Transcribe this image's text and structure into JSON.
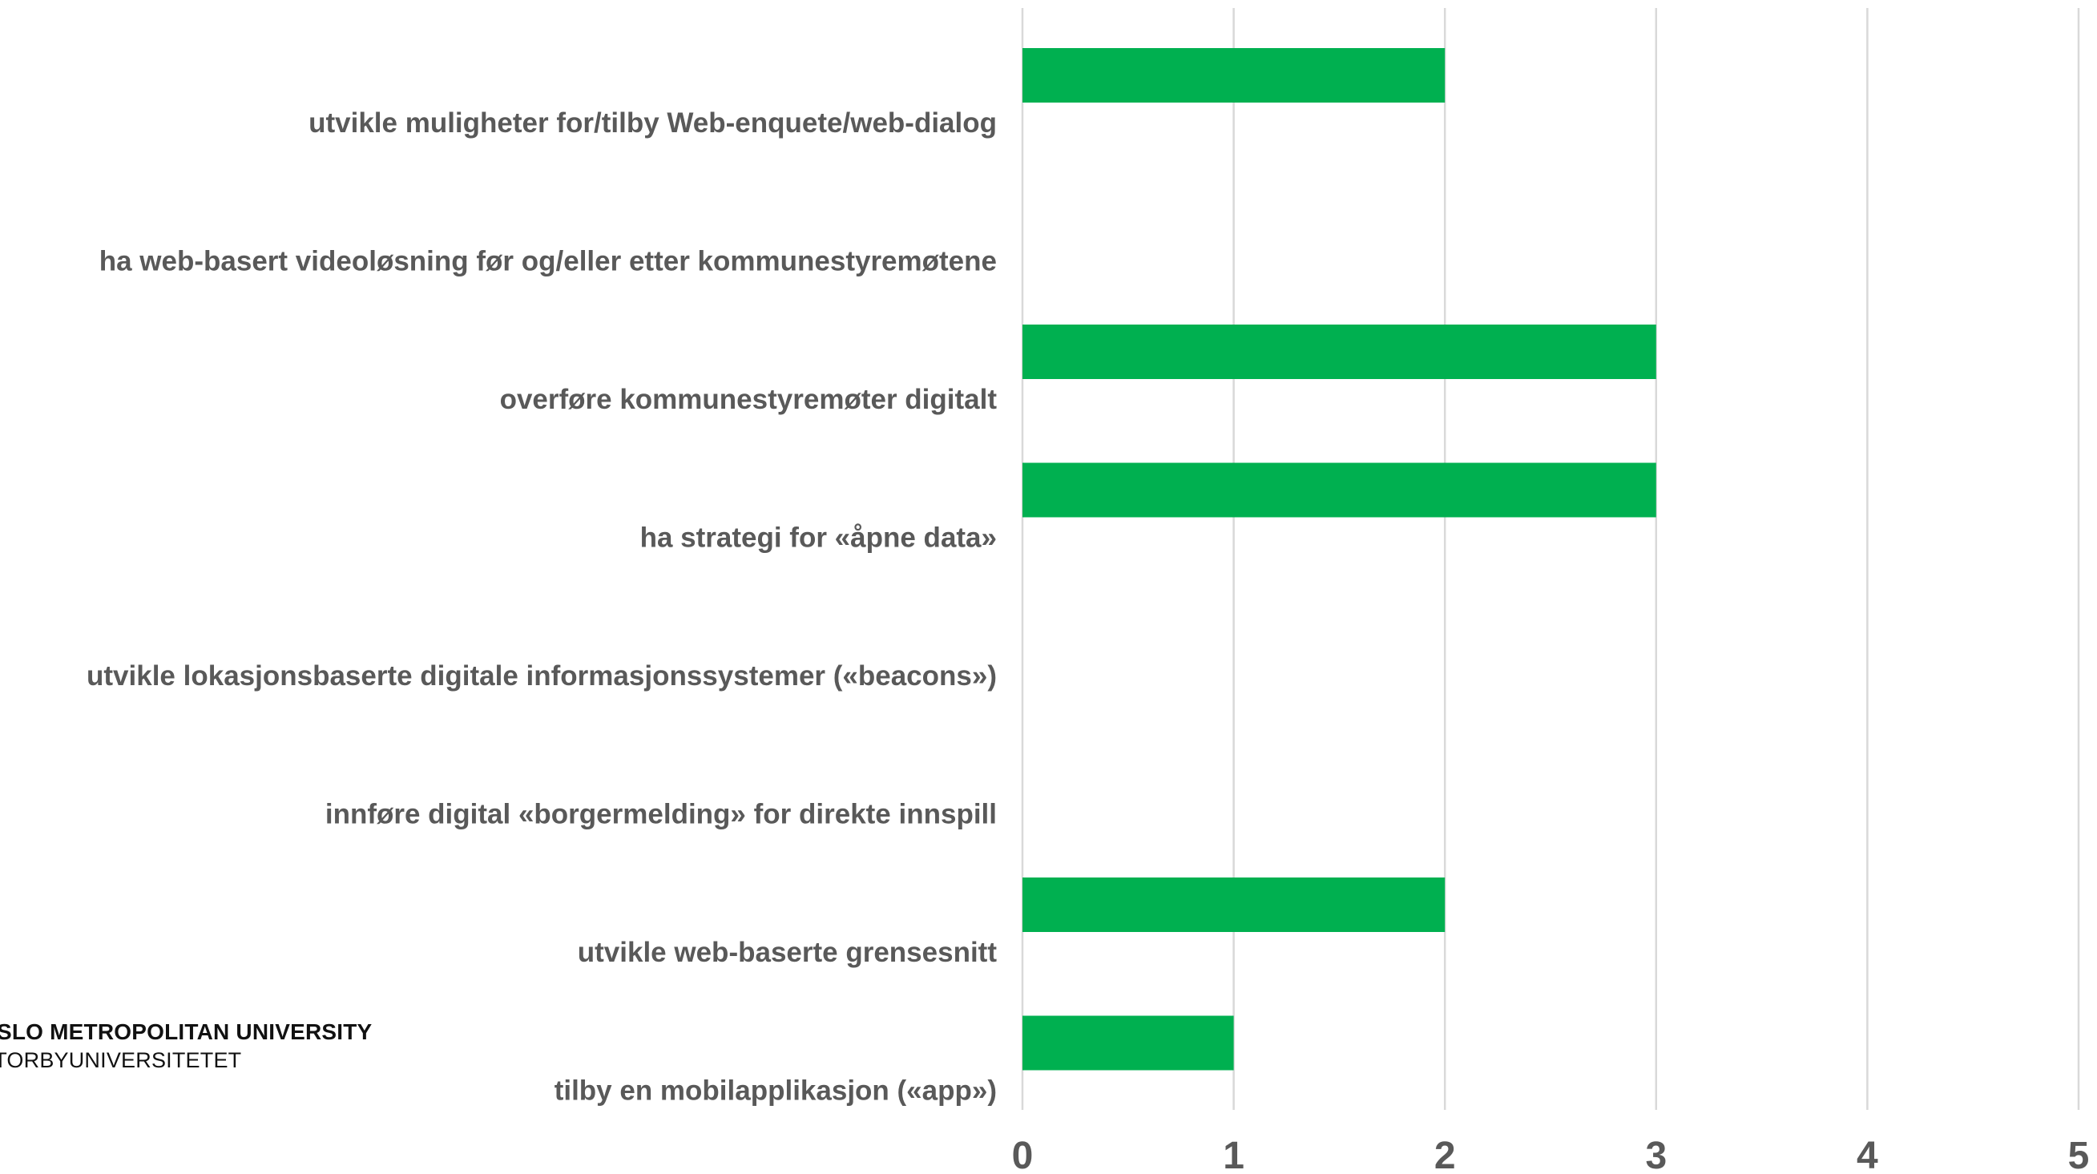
{
  "chart_data": {
    "type": "bar",
    "orientation": "horizontal",
    "categories": [
      "utvikle muligheter for/tilby Web-enquete/web-dialog",
      "ha web-basert videoløsning før og/eller etter kommunestyremøtene",
      "overføre kommunestyremøter digitalt",
      "ha strategi for «åpne data»",
      "utvikle lokasjonsbaserte digitale informasjonssystemer («beacons»)",
      "innføre digital «borgermelding» for direkte innspill",
      "utvikle web-baserte grensesnitt",
      "tilby en mobilapplikasjon («app»)"
    ],
    "values": [
      2,
      0,
      3,
      3,
      0,
      0,
      2,
      1
    ],
    "xlim": [
      0,
      5
    ],
    "ticks": [
      "0",
      "1",
      "2",
      "3",
      "4",
      "5"
    ],
    "grid": true,
    "bar_color": "#00B050",
    "grid_color": "#D9D9D9",
    "label_color": "#595959"
  },
  "logo": {
    "line1": "OSLO METROPOLITAN UNIVERSITY",
    "line2": "STORBYUNIVERSITETET"
  }
}
